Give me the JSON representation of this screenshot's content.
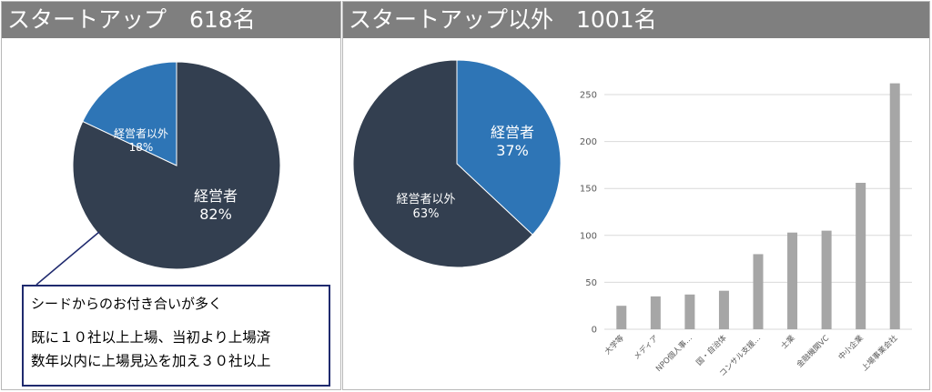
{
  "left_panel": {
    "title": "スタートアップ　618名",
    "callout": {
      "line1": "シードからのお付き合いが多く",
      "line2": "既に１０社以上上場、当初より上場済",
      "line3": "数年以内に上場見込を加え３０社以上"
    }
  },
  "right_panel": {
    "title": "スタートアップ以外　1001名"
  },
  "colors": {
    "header_bg": "#7f7f7f",
    "dark_slice": "#333f50",
    "blue_slice": "#2e75b6",
    "bar": "#a6a6a6",
    "callout_border": "#1f2a6e"
  },
  "chart_data": [
    {
      "type": "pie",
      "title": "スタートアップ　618名",
      "slices": [
        {
          "name": "経営者",
          "value": 82,
          "label": "82%",
          "color": "#333f50"
        },
        {
          "name": "経営者以外",
          "value": 18,
          "label": "18%",
          "color": "#2e75b6"
        }
      ]
    },
    {
      "type": "pie",
      "title": "スタートアップ以外　1001名",
      "slices": [
        {
          "name": "経営者",
          "value": 37,
          "label": "37%",
          "color": "#2e75b6"
        },
        {
          "name": "経営者以外",
          "value": 63,
          "label": "63%",
          "color": "#333f50"
        }
      ]
    },
    {
      "type": "bar",
      "categories": [
        "大学等",
        "メディア",
        "NPO個人事…",
        "国・自治体",
        "コンサル支援…",
        "士業",
        "金融機関VC",
        "中小企業",
        "上場事業会社"
      ],
      "values": [
        25,
        35,
        37,
        41,
        80,
        103,
        105,
        156,
        262
      ],
      "ylim": [
        0,
        250
      ],
      "yticks": [
        0,
        50,
        100,
        150,
        200,
        250
      ],
      "grid": true
    }
  ]
}
